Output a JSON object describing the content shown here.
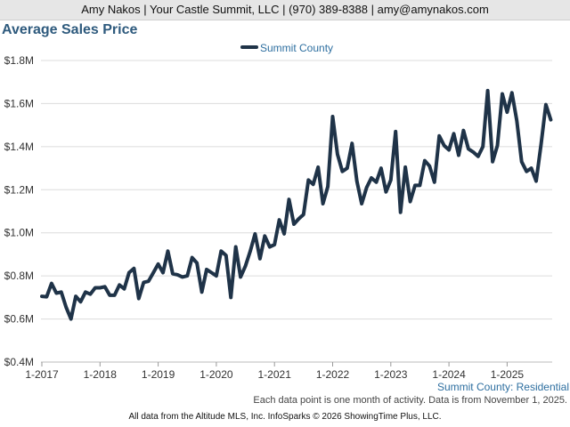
{
  "header": {
    "contact_line": "Amy Nakos | Your Castle Summit, LLC | (970) 389-8388 | amy@amynakos.com"
  },
  "chart_data": {
    "type": "line",
    "title": "Average Sales Price",
    "ylim": [
      400000,
      1800000
    ],
    "y_ticks": [
      400000,
      600000,
      800000,
      1000000,
      1200000,
      1400000,
      1600000,
      1800000
    ],
    "y_tick_labels": [
      "$0.4M",
      "$0.6M",
      "$0.8M",
      "$1.0M",
      "$1.2M",
      "$1.4M",
      "$1.6M",
      "$1.8M"
    ],
    "x_ticks": [
      "2017-01",
      "2018-01",
      "2019-01",
      "2020-01",
      "2021-01",
      "2022-01",
      "2023-01",
      "2024-01",
      "2025-01"
    ],
    "x_tick_labels": [
      "1-2017",
      "1-2018",
      "1-2019",
      "1-2020",
      "1-2021",
      "1-2022",
      "1-2023",
      "1-2024",
      "1-2025"
    ],
    "grid": true,
    "legend_position": "top-center",
    "series_color": "#1f3348",
    "series": [
      {
        "name": "Summit County",
        "start_month": "2017-01",
        "values": [
          705000,
          703000,
          765000,
          720000,
          725000,
          655000,
          600000,
          705000,
          680000,
          725000,
          715000,
          745000,
          745000,
          750000,
          710000,
          710000,
          758000,
          740000,
          815000,
          835000,
          695000,
          770000,
          775000,
          815000,
          855000,
          815000,
          915000,
          810000,
          805000,
          795000,
          800000,
          885000,
          860000,
          725000,
          830000,
          815000,
          800000,
          915000,
          895000,
          700000,
          935000,
          795000,
          845000,
          915000,
          995000,
          880000,
          985000,
          935000,
          945000,
          1060000,
          995000,
          1155000,
          1040000,
          1065000,
          1085000,
          1245000,
          1225000,
          1305000,
          1135000,
          1215000,
          1540000,
          1365000,
          1285000,
          1300000,
          1415000,
          1240000,
          1135000,
          1210000,
          1255000,
          1235000,
          1300000,
          1190000,
          1245000,
          1470000,
          1095000,
          1305000,
          1145000,
          1220000,
          1220000,
          1335000,
          1310000,
          1235000,
          1450000,
          1405000,
          1385000,
          1460000,
          1360000,
          1475000,
          1390000,
          1375000,
          1355000,
          1400000,
          1660000,
          1330000,
          1405000,
          1645000,
          1560000,
          1650000,
          1520000,
          1330000,
          1285000,
          1300000,
          1240000,
          1410000,
          1595000,
          1525000
        ]
      }
    ]
  },
  "footer": {
    "region_label": "Summit County: Residential",
    "note": "Each data point is one month of activity. Data is from November 1, 2025.",
    "credit": "All data from the Altitude MLS, Inc. InfoSparks © 2026 ShowingTime Plus, LLC."
  }
}
